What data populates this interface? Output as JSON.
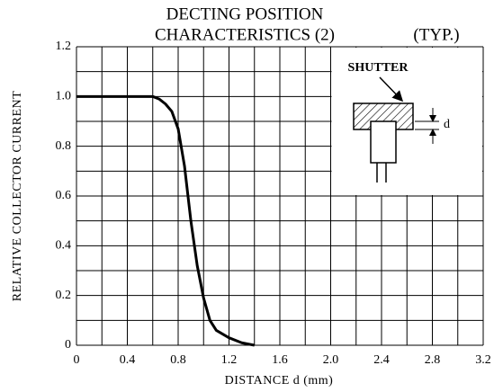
{
  "chart_data": {
    "type": "line",
    "title": "DECTING POSITION",
    "subtitle": "CHARACTERISTICS (2)",
    "annotation": "(TYP.)",
    "x_label": "DISTANCE  d  (mm)",
    "y_label": "RELATIVE COLLECTOR CURRENT",
    "inset_labels": [
      "SHUTTER",
      "d"
    ],
    "x": [
      0,
      0.6,
      0.65,
      0.7,
      0.75,
      0.8,
      0.85,
      0.9,
      0.95,
      1.0,
      1.05,
      1.1,
      1.2,
      1.3,
      1.4
    ],
    "values": [
      1.0,
      1.0,
      0.99,
      0.97,
      0.94,
      0.87,
      0.72,
      0.5,
      0.32,
      0.19,
      0.1,
      0.06,
      0.03,
      0.01,
      0
    ],
    "color": "#000000",
    "xlim": [
      0,
      3.2
    ],
    "ylim": [
      0,
      1.2
    ],
    "xticks": [
      0,
      0.4,
      0.8,
      1.2,
      1.6,
      {
        "value": 2,
        "label": "2.0"
      },
      2.4,
      2.8,
      3.2
    ],
    "yticks": [
      0,
      0.2,
      0.4,
      0.6,
      0.8,
      {
        "value": 1,
        "label": "1.0"
      },
      1.2
    ],
    "xgrid": [
      0.2,
      0.6,
      1.0,
      1.4,
      1.8,
      2.2,
      2.6,
      3.0
    ],
    "ygrid": [
      0.1,
      0.3,
      0.5,
      0.7,
      0.9,
      1.1
    ],
    "grid": true
  }
}
